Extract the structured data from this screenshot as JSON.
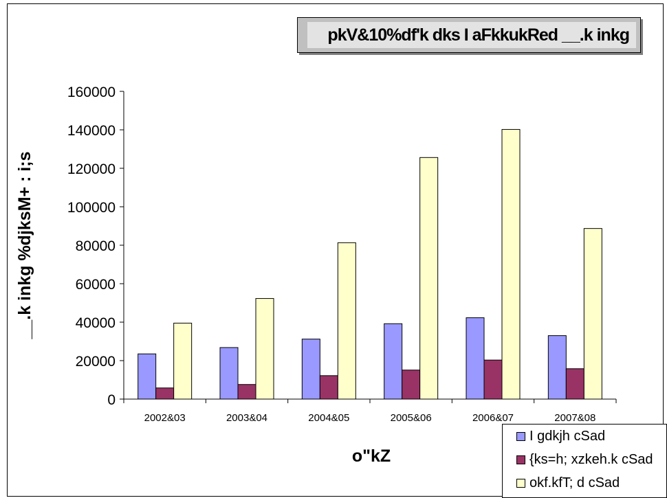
{
  "chart_data": {
    "type": "bar",
    "title": "pkV&10%df'k dks I aFkkukRed __.k inkg",
    "xlabel": "o\"kZ",
    "ylabel": "__.k inkg %djksM+ : i;s",
    "categories": [
      "2002&03",
      "2003&04",
      "2004&05",
      "2005&06",
      "2006&07",
      "2007&08"
    ],
    "ylim": [
      0,
      160000
    ],
    "yticks": [
      0,
      20000,
      40000,
      60000,
      80000,
      100000,
      120000,
      140000,
      160000
    ],
    "grid": false,
    "legend_position": "bottom-right",
    "series": [
      {
        "name": "I gdkjh cSad",
        "color": "#9999ff",
        "values": [
          23500,
          26800,
          31200,
          39200,
          42300,
          33000
        ]
      },
      {
        "name": "{ks=h; xzkeh.k cSad",
        "color": "#993366",
        "values": [
          5800,
          7600,
          12200,
          15100,
          20300,
          15800
        ]
      },
      {
        "name": "okf.kfT; d cSad",
        "color": "#ffffcc",
        "values": [
          39500,
          52300,
          81300,
          125600,
          140200,
          88700
        ]
      }
    ]
  }
}
